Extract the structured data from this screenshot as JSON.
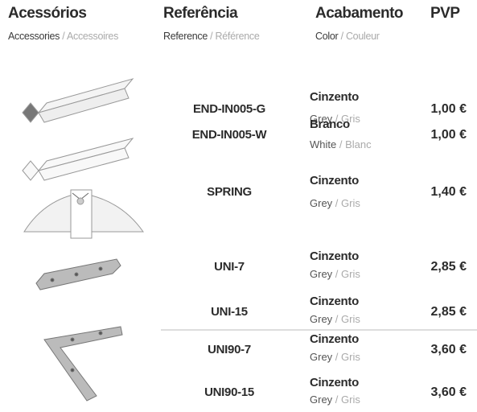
{
  "header": {
    "accessories": {
      "title": "Acessórios",
      "en": "Accessories",
      "fr": "Accessoires"
    },
    "reference": {
      "title": "Referência",
      "en": "Reference",
      "fr": "Référence"
    },
    "finish": {
      "title": "Acabamento",
      "en": "Color",
      "fr": "Couleur"
    },
    "price": {
      "title": "PVP"
    },
    "separator": "/"
  },
  "rows": [
    {
      "reference": "END-IN005-G",
      "finish": "Cinzento",
      "en": "Grey",
      "fr": "Gris",
      "price": "1,00 €"
    },
    {
      "reference": "END-IN005-W",
      "finish": "Branco",
      "en": "White",
      "fr": "Blanc",
      "price": "1,00 €"
    },
    {
      "reference": "SPRING",
      "finish": "Cinzento",
      "en": "Grey",
      "fr": "Gris",
      "price": "1,40 €"
    },
    {
      "reference": "UNI-7",
      "finish": "Cinzento",
      "en": "Grey",
      "fr": "Gris",
      "price": "2,85 €"
    },
    {
      "reference": "UNI-15",
      "finish": "Cinzento",
      "en": "Grey",
      "fr": "Gris",
      "price": "2,85 €"
    },
    {
      "reference": "UNI90-7",
      "finish": "Cinzento",
      "en": "Grey",
      "fr": "Gris",
      "price": "3,60 €"
    },
    {
      "reference": "UNI90-15",
      "finish": "Cinzento",
      "en": "Grey",
      "fr": "Gris",
      "price": "3,60 €"
    }
  ]
}
